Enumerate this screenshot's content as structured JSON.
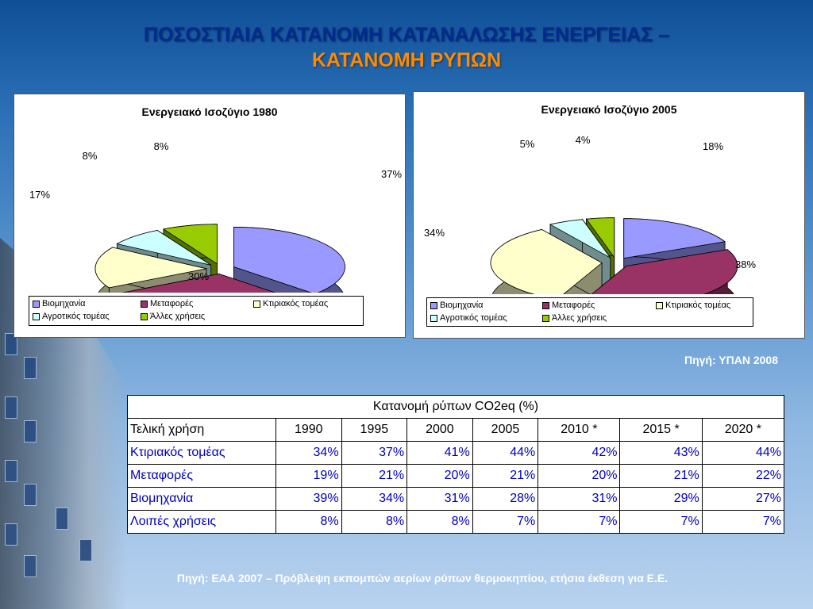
{
  "title": {
    "line1": "ΠΟΣΟΣΤΙΑΙΑ ΚΑΤΑΝΟΜΗ ΚΑΤΑΝΑΛΩΣΗΣ ΕΝΕΡΓΕΙΑΣ –",
    "line2": "ΚΑΤΑΝΟΜΗ ΡΥΠΩΝ"
  },
  "colors": {
    "industry": "#9999ff",
    "transport": "#993366",
    "residential": "#ffffcc",
    "agriculture": "#ccffff",
    "other": "#99cc00"
  },
  "legend": {
    "industry": "Βιομηχανία",
    "transport": "Μεταφορές",
    "residential": "Κτιριακός τομέας",
    "agriculture": "Αγροτικός τομέας",
    "other": "Άλλες χρήσεις"
  },
  "chart_data": [
    {
      "type": "pie",
      "title": "Ενεργειακό Ισοζύγιο 1980",
      "categories": [
        "Βιομηχανία",
        "Μεταφορές",
        "Κτιριακός τομέας",
        "Αγροτικός τομέας",
        "Άλλες χρήσεις"
      ],
      "values": [
        37,
        30,
        17,
        8,
        8
      ],
      "labels": [
        "37%",
        "30%",
        "17%",
        "8%",
        "8%"
      ],
      "legend_position": "bottom"
    },
    {
      "type": "pie",
      "title": "Ενεργειακό Ισοζύγιο 2005",
      "categories": [
        "Βιομηχανία",
        "Μεταφορές",
        "Κτιριακός τομέας",
        "Αγροτικός τομέας",
        "Άλλες χρήσεις"
      ],
      "values": [
        18,
        38,
        34,
        5,
        4
      ],
      "labels": [
        "18%",
        "38%",
        "34%",
        "5%",
        "4%"
      ],
      "legend_position": "bottom"
    },
    {
      "type": "table",
      "caption": "Κατανομή ρύπων CO2eq (%)",
      "header_label": "Τελική χρήση",
      "columns": [
        "1990",
        "1995",
        "2000",
        "2005",
        "2010 *",
        "2015 *",
        "2020 *"
      ],
      "rows": [
        {
          "label": "Κτιριακός τομέας",
          "values": [
            "34%",
            "37%",
            "41%",
            "44%",
            "42%",
            "43%",
            "44%"
          ]
        },
        {
          "label": "Μεταφορές",
          "values": [
            "19%",
            "21%",
            "20%",
            "21%",
            "20%",
            "21%",
            "22%"
          ]
        },
        {
          "label": "Βιομηχανία",
          "values": [
            "39%",
            "34%",
            "31%",
            "28%",
            "31%",
            "29%",
            "27%"
          ]
        },
        {
          "label": "Λοιπές χρήσεις",
          "values": [
            "8%",
            "8%",
            "8%",
            "7%",
            "7%",
            "7%",
            "7%"
          ]
        }
      ]
    }
  ],
  "sources": {
    "pie": "Πηγή: ΥΠΑΝ 2008",
    "table": "Πηγή: ΕΑΑ 2007 – Πρόβλεψη εκπομπών αερίων ρύπων θερμοκηπίου, ετήσια έκθεση για Ε.Ε."
  }
}
